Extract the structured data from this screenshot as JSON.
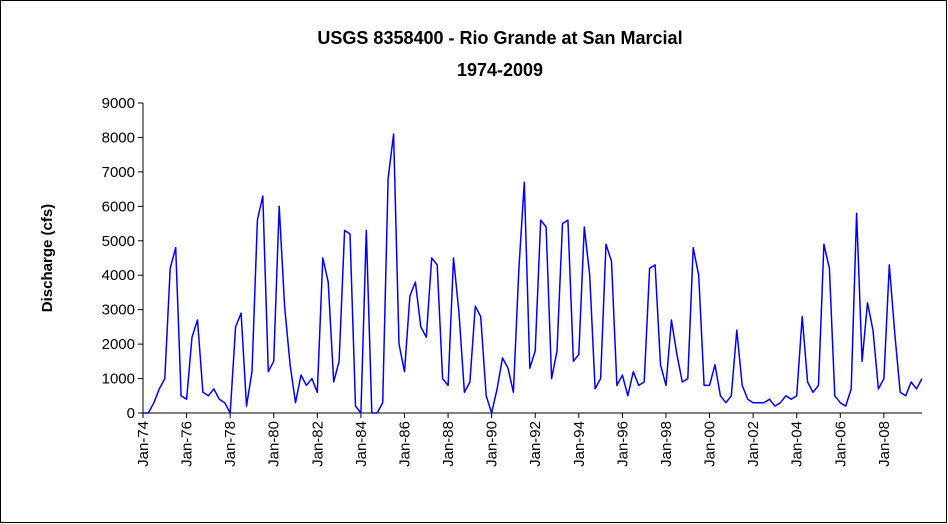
{
  "chart_data": {
    "type": "line",
    "title": "USGS 8358400 -  Rio Grande at San Marcial",
    "subtitle": "1974-2009",
    "ylabel": "Discharge (cfs)",
    "x": [
      "Jan-74",
      "Apr-74",
      "Jul-74",
      "Oct-74",
      "Jan-75",
      "Apr-75",
      "Jul-75",
      "Oct-75",
      "Jan-76",
      "Apr-76",
      "Jul-76",
      "Oct-76",
      "Jan-77",
      "Apr-77",
      "Jul-77",
      "Oct-77",
      "Jan-78",
      "Apr-78",
      "Jul-78",
      "Oct-78",
      "Jan-79",
      "Apr-79",
      "Jul-79",
      "Oct-79",
      "Jan-80",
      "Apr-80",
      "Jul-80",
      "Oct-80",
      "Jan-81",
      "Apr-81",
      "Jul-81",
      "Oct-81",
      "Jan-82",
      "Apr-82",
      "Jul-82",
      "Oct-82",
      "Jan-83",
      "Apr-83",
      "Jul-83",
      "Oct-83",
      "Jan-84",
      "Apr-84",
      "Jul-84",
      "Oct-84",
      "Jan-85",
      "Apr-85",
      "Jul-85",
      "Oct-85",
      "Jan-86",
      "Apr-86",
      "Jul-86",
      "Oct-86",
      "Jan-87",
      "Apr-87",
      "Jul-87",
      "Oct-87",
      "Jan-88",
      "Apr-88",
      "Jul-88",
      "Oct-88",
      "Jan-89",
      "Apr-89",
      "Jul-89",
      "Oct-89",
      "Jan-90",
      "Apr-90",
      "Jul-90",
      "Oct-90",
      "Jan-91",
      "Apr-91",
      "Jul-91",
      "Oct-91",
      "Jan-92",
      "Apr-92",
      "Jul-92",
      "Oct-92",
      "Jan-93",
      "Apr-93",
      "Jul-93",
      "Oct-93",
      "Jan-94",
      "Apr-94",
      "Jul-94",
      "Oct-94",
      "Jan-95",
      "Apr-95",
      "Jul-95",
      "Oct-95",
      "Jan-96",
      "Apr-96",
      "Jul-96",
      "Oct-96",
      "Jan-97",
      "Apr-97",
      "Jul-97",
      "Oct-97",
      "Jan-98",
      "Apr-98",
      "Jul-98",
      "Oct-98",
      "Jan-99",
      "Apr-99",
      "Jul-99",
      "Oct-99",
      "Jan-00",
      "Apr-00",
      "Jul-00",
      "Oct-00",
      "Jan-01",
      "Apr-01",
      "Jul-01",
      "Oct-01",
      "Jan-02",
      "Apr-02",
      "Jul-02",
      "Oct-02",
      "Jan-03",
      "Apr-03",
      "Jul-03",
      "Oct-03",
      "Jan-04",
      "Apr-04",
      "Jul-04",
      "Oct-04",
      "Jan-05",
      "Apr-05",
      "Jul-05",
      "Oct-05",
      "Jan-06",
      "Apr-06",
      "Jul-06",
      "Oct-06",
      "Jan-07",
      "Apr-07",
      "Jul-07",
      "Oct-07",
      "Jan-08",
      "Apr-08",
      "Jul-08",
      "Oct-08",
      "Jan-09",
      "Apr-09",
      "Jul-09",
      "Oct-09"
    ],
    "series": [
      {
        "color": "#0000ff",
        "values": [
          0,
          0,
          300,
          700,
          1000,
          4200,
          4800,
          500,
          400,
          2200,
          2700,
          600,
          500,
          700,
          400,
          300,
          0,
          2500,
          2900,
          200,
          1200,
          5600,
          6300,
          1200,
          1500,
          6000,
          3100,
          1400,
          300,
          1100,
          800,
          1000,
          600,
          4500,
          3800,
          900,
          1500,
          5300,
          5200,
          200,
          0,
          5300,
          0,
          0,
          300,
          6800,
          8100,
          2000,
          1200,
          3400,
          3800,
          2500,
          2200,
          4500,
          4300,
          1000,
          800,
          4500,
          2900,
          600,
          900,
          3100,
          2800,
          500,
          0,
          700,
          1600,
          1300,
          600,
          4200,
          6700,
          1300,
          1800,
          5600,
          5400,
          1000,
          1800,
          5500,
          5600,
          1500,
          1700,
          5400,
          4000,
          700,
          1000,
          4900,
          4400,
          800,
          1100,
          500,
          1200,
          800,
          900,
          4200,
          4300,
          1400,
          800,
          2700,
          1700,
          900,
          1000,
          4800,
          4000,
          800,
          800,
          1400,
          500,
          300,
          500,
          2400,
          800,
          400,
          300,
          300,
          300,
          400,
          200,
          300,
          500,
          400,
          500,
          2800,
          900,
          600,
          800,
          4900,
          4200,
          500,
          300,
          200,
          700,
          5800,
          1500,
          3200,
          2400,
          700,
          1000,
          4300,
          2300,
          600,
          500,
          900,
          700,
          1000
        ]
      }
    ],
    "ylim": [
      0,
      9000
    ],
    "yticks": [
      0,
      1000,
      2000,
      3000,
      4000,
      5000,
      6000,
      7000,
      8000,
      9000
    ],
    "xticks": [
      "Jan-74",
      "Jan-76",
      "Jan-78",
      "Jan-80",
      "Jan-82",
      "Jan-84",
      "Jan-86",
      "Jan-88",
      "Jan-90",
      "Jan-92",
      "Jan-94",
      "Jan-96",
      "Jan-98",
      "Jan-00",
      "Jan-02",
      "Jan-04",
      "Jan-06",
      "Jan-08"
    ]
  }
}
